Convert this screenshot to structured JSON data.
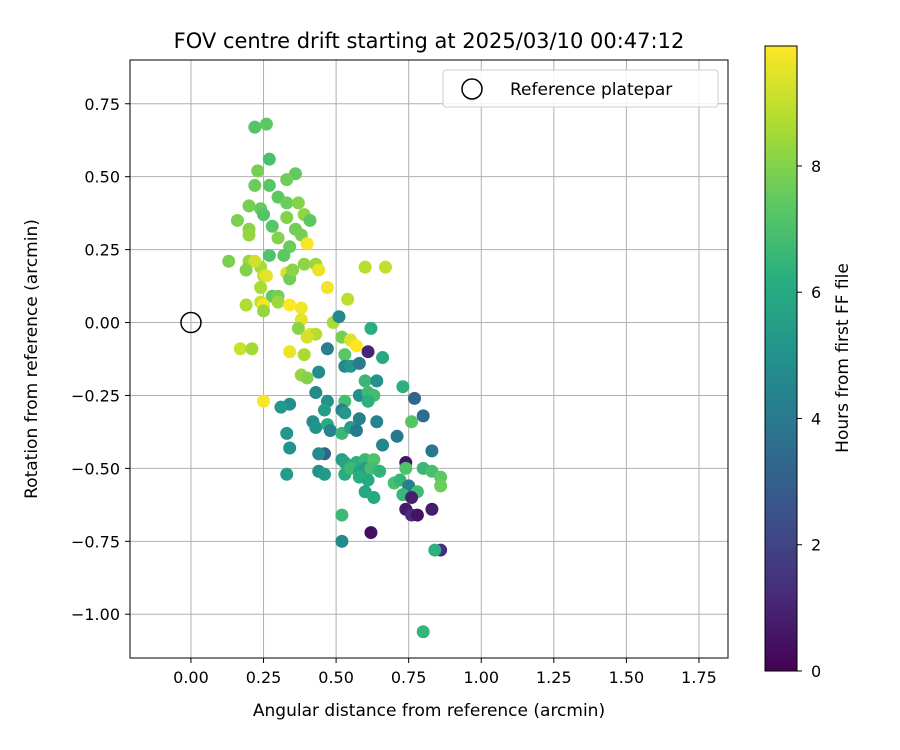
{
  "chart_data": {
    "type": "scatter",
    "title": "FOV centre drift starting at 2025/03/10 00:47:12",
    "xlabel": "Angular distance from reference (arcmin)",
    "ylabel": "Rotation from reference (arcmin)",
    "xlim": [
      -0.21,
      1.85
    ],
    "ylim": [
      -1.15,
      0.9
    ],
    "xticks": [
      "0.00",
      "0.25",
      "0.50",
      "0.75",
      "1.00",
      "1.25",
      "1.50",
      "1.75"
    ],
    "xtick_values": [
      0,
      0.25,
      0.5,
      0.75,
      1.0,
      1.25,
      1.5,
      1.75
    ],
    "yticks": [
      "−1.00",
      "−0.75",
      "−0.50",
      "−0.25",
      "0.00",
      "0.25",
      "0.50",
      "0.75"
    ],
    "ytick_values": [
      -1.0,
      -0.75,
      -0.5,
      -0.25,
      0,
      0.25,
      0.5,
      0.75
    ],
    "grid": true,
    "legend": {
      "placement": "top-right",
      "label": "Reference platepar"
    },
    "reference_point": {
      "x": 0.0,
      "y": 0.0
    },
    "colorbar": {
      "label": "Hours from first FF file",
      "colormap": "viridis",
      "range": [
        0,
        9.9
      ],
      "ticks": [
        "0",
        "2",
        "4",
        "6",
        "8"
      ],
      "tick_values": [
        0,
        2,
        4,
        6,
        8
      ]
    },
    "points": [
      {
        "x": 0.22,
        "y": 0.67,
        "h": 7.2
      },
      {
        "x": 0.26,
        "y": 0.68,
        "h": 7.4
      },
      {
        "x": 0.27,
        "y": 0.56,
        "h": 7.0
      },
      {
        "x": 0.23,
        "y": 0.52,
        "h": 7.8
      },
      {
        "x": 0.22,
        "y": 0.47,
        "h": 7.6
      },
      {
        "x": 0.27,
        "y": 0.47,
        "h": 7.3
      },
      {
        "x": 0.36,
        "y": 0.51,
        "h": 7.5
      },
      {
        "x": 0.33,
        "y": 0.49,
        "h": 7.7
      },
      {
        "x": 0.3,
        "y": 0.43,
        "h": 7.4
      },
      {
        "x": 0.33,
        "y": 0.41,
        "h": 7.6
      },
      {
        "x": 0.37,
        "y": 0.41,
        "h": 8.0
      },
      {
        "x": 0.2,
        "y": 0.4,
        "h": 7.8
      },
      {
        "x": 0.24,
        "y": 0.39,
        "h": 7.5
      },
      {
        "x": 0.25,
        "y": 0.37,
        "h": 7.2
      },
      {
        "x": 0.39,
        "y": 0.37,
        "h": 8.2
      },
      {
        "x": 0.41,
        "y": 0.35,
        "h": 7.4
      },
      {
        "x": 0.16,
        "y": 0.35,
        "h": 7.9
      },
      {
        "x": 0.33,
        "y": 0.36,
        "h": 8.0
      },
      {
        "x": 0.28,
        "y": 0.33,
        "h": 7.3
      },
      {
        "x": 0.36,
        "y": 0.32,
        "h": 7.7
      },
      {
        "x": 0.2,
        "y": 0.32,
        "h": 8.1
      },
      {
        "x": 0.2,
        "y": 0.3,
        "h": 8.3
      },
      {
        "x": 0.3,
        "y": 0.29,
        "h": 8.0
      },
      {
        "x": 0.38,
        "y": 0.3,
        "h": 7.8
      },
      {
        "x": 0.34,
        "y": 0.26,
        "h": 7.6
      },
      {
        "x": 0.4,
        "y": 0.27,
        "h": 9.8
      },
      {
        "x": 0.27,
        "y": 0.23,
        "h": 7.1
      },
      {
        "x": 0.32,
        "y": 0.23,
        "h": 7.4
      },
      {
        "x": 0.13,
        "y": 0.21,
        "h": 7.9
      },
      {
        "x": 0.2,
        "y": 0.21,
        "h": 8.3
      },
      {
        "x": 0.24,
        "y": 0.19,
        "h": 8.5
      },
      {
        "x": 0.22,
        "y": 0.21,
        "h": 9.2
      },
      {
        "x": 0.19,
        "y": 0.18,
        "h": 8.0
      },
      {
        "x": 0.39,
        "y": 0.2,
        "h": 8.2
      },
      {
        "x": 0.43,
        "y": 0.2,
        "h": 8.4
      },
      {
        "x": 0.44,
        "y": 0.18,
        "h": 9.6
      },
      {
        "x": 0.6,
        "y": 0.19,
        "h": 8.8
      },
      {
        "x": 0.67,
        "y": 0.19,
        "h": 9.0
      },
      {
        "x": 0.25,
        "y": 0.16,
        "h": 9.0
      },
      {
        "x": 0.26,
        "y": 0.16,
        "h": 9.5
      },
      {
        "x": 0.33,
        "y": 0.17,
        "h": 9.3
      },
      {
        "x": 0.34,
        "y": 0.15,
        "h": 7.7
      },
      {
        "x": 0.35,
        "y": 0.18,
        "h": 8.1
      },
      {
        "x": 0.24,
        "y": 0.12,
        "h": 8.6
      },
      {
        "x": 0.47,
        "y": 0.12,
        "h": 9.7
      },
      {
        "x": 0.28,
        "y": 0.09,
        "h": 7.5
      },
      {
        "x": 0.3,
        "y": 0.09,
        "h": 7.8
      },
      {
        "x": 0.24,
        "y": 0.07,
        "h": 9.1
      },
      {
        "x": 0.25,
        "y": 0.06,
        "h": 9.8
      },
      {
        "x": 0.19,
        "y": 0.06,
        "h": 8.7
      },
      {
        "x": 0.3,
        "y": 0.07,
        "h": 8.4
      },
      {
        "x": 0.34,
        "y": 0.06,
        "h": 9.9
      },
      {
        "x": 0.54,
        "y": 0.08,
        "h": 8.9
      },
      {
        "x": 0.25,
        "y": 0.04,
        "h": 8.3
      },
      {
        "x": 0.38,
        "y": 0.05,
        "h": 9.7
      },
      {
        "x": 0.38,
        "y": 0.01,
        "h": 9.5
      },
      {
        "x": 0.49,
        "y": 0.0,
        "h": 8.6
      },
      {
        "x": 0.51,
        "y": 0.02,
        "h": 4.6
      },
      {
        "x": 0.37,
        "y": -0.02,
        "h": 8.1
      },
      {
        "x": 0.62,
        "y": -0.02,
        "h": 6.2
      },
      {
        "x": 0.41,
        "y": -0.04,
        "h": 9.6
      },
      {
        "x": 0.43,
        "y": -0.04,
        "h": 8.8
      },
      {
        "x": 0.52,
        "y": -0.05,
        "h": 7.8
      },
      {
        "x": 0.4,
        "y": -0.05,
        "h": 9.3
      },
      {
        "x": 0.55,
        "y": -0.06,
        "h": 9.4
      },
      {
        "x": 0.57,
        "y": -0.08,
        "h": 9.9
      },
      {
        "x": 0.17,
        "y": -0.09,
        "h": 9.1
      },
      {
        "x": 0.21,
        "y": -0.09,
        "h": 8.5
      },
      {
        "x": 0.34,
        "y": -0.1,
        "h": 9.6
      },
      {
        "x": 0.47,
        "y": -0.09,
        "h": 4.3
      },
      {
        "x": 0.61,
        "y": -0.1,
        "h": 1.0
      },
      {
        "x": 0.39,
        "y": -0.11,
        "h": 8.6
      },
      {
        "x": 0.53,
        "y": -0.11,
        "h": 7.3
      },
      {
        "x": 0.66,
        "y": -0.12,
        "h": 6.0
      },
      {
        "x": 0.53,
        "y": -0.15,
        "h": 4.6
      },
      {
        "x": 0.55,
        "y": -0.15,
        "h": 5.2
      },
      {
        "x": 0.58,
        "y": -0.14,
        "h": 4.1
      },
      {
        "x": 0.44,
        "y": -0.17,
        "h": 4.8
      },
      {
        "x": 0.38,
        "y": -0.18,
        "h": 8.3
      },
      {
        "x": 0.4,
        "y": -0.19,
        "h": 8.0
      },
      {
        "x": 0.6,
        "y": -0.2,
        "h": 6.6
      },
      {
        "x": 0.64,
        "y": -0.2,
        "h": 5.0
      },
      {
        "x": 0.73,
        "y": -0.22,
        "h": 6.3
      },
      {
        "x": 0.43,
        "y": -0.24,
        "h": 4.7
      },
      {
        "x": 0.58,
        "y": -0.25,
        "h": 4.9
      },
      {
        "x": 0.61,
        "y": -0.24,
        "h": 6.7
      },
      {
        "x": 0.63,
        "y": -0.25,
        "h": 6.8
      },
      {
        "x": 0.77,
        "y": -0.26,
        "h": 3.3
      },
      {
        "x": 0.25,
        "y": -0.27,
        "h": 9.8
      },
      {
        "x": 0.34,
        "y": -0.28,
        "h": 4.9
      },
      {
        "x": 0.31,
        "y": -0.29,
        "h": 5.3
      },
      {
        "x": 0.47,
        "y": -0.27,
        "h": 5.0
      },
      {
        "x": 0.53,
        "y": -0.27,
        "h": 6.9
      },
      {
        "x": 0.61,
        "y": -0.27,
        "h": 6.3
      },
      {
        "x": 0.46,
        "y": -0.3,
        "h": 5.5
      },
      {
        "x": 0.52,
        "y": -0.3,
        "h": 4.4
      },
      {
        "x": 0.53,
        "y": -0.31,
        "h": 5.2
      },
      {
        "x": 0.58,
        "y": -0.33,
        "h": 4.3
      },
      {
        "x": 0.8,
        "y": -0.32,
        "h": 3.5
      },
      {
        "x": 0.64,
        "y": -0.34,
        "h": 4.4
      },
      {
        "x": 0.76,
        "y": -0.34,
        "h": 7.2
      },
      {
        "x": 0.42,
        "y": -0.34,
        "h": 4.8
      },
      {
        "x": 0.43,
        "y": -0.36,
        "h": 5.1
      },
      {
        "x": 0.47,
        "y": -0.35,
        "h": 6.1
      },
      {
        "x": 0.48,
        "y": -0.37,
        "h": 4.4
      },
      {
        "x": 0.52,
        "y": -0.38,
        "h": 6.6
      },
      {
        "x": 0.55,
        "y": -0.36,
        "h": 5.5
      },
      {
        "x": 0.57,
        "y": -0.37,
        "h": 4.0
      },
      {
        "x": 0.33,
        "y": -0.38,
        "h": 5.2
      },
      {
        "x": 0.71,
        "y": -0.39,
        "h": 4.0
      },
      {
        "x": 0.66,
        "y": -0.42,
        "h": 4.5
      },
      {
        "x": 0.34,
        "y": -0.43,
        "h": 5.0
      },
      {
        "x": 0.83,
        "y": -0.44,
        "h": 3.9
      },
      {
        "x": 0.46,
        "y": -0.45,
        "h": 3.0
      },
      {
        "x": 0.44,
        "y": -0.45,
        "h": 4.8
      },
      {
        "x": 0.52,
        "y": -0.47,
        "h": 5.5
      },
      {
        "x": 0.53,
        "y": -0.48,
        "h": 5.8
      },
      {
        "x": 0.57,
        "y": -0.48,
        "h": 6.3
      },
      {
        "x": 0.6,
        "y": -0.47,
        "h": 6.6
      },
      {
        "x": 0.63,
        "y": -0.47,
        "h": 7.1
      },
      {
        "x": 0.74,
        "y": -0.48,
        "h": 0.6
      },
      {
        "x": 0.33,
        "y": -0.52,
        "h": 5.4
      },
      {
        "x": 0.44,
        "y": -0.51,
        "h": 5.0
      },
      {
        "x": 0.46,
        "y": -0.52,
        "h": 5.3
      },
      {
        "x": 0.53,
        "y": -0.52,
        "h": 6.1
      },
      {
        "x": 0.55,
        "y": -0.5,
        "h": 6.7
      },
      {
        "x": 0.58,
        "y": -0.51,
        "h": 5.8
      },
      {
        "x": 0.6,
        "y": -0.5,
        "h": 5.6
      },
      {
        "x": 0.62,
        "y": -0.5,
        "h": 6.9
      },
      {
        "x": 0.65,
        "y": -0.51,
        "h": 6.4
      },
      {
        "x": 0.74,
        "y": -0.5,
        "h": 7.1
      },
      {
        "x": 0.8,
        "y": -0.5,
        "h": 6.6
      },
      {
        "x": 0.83,
        "y": -0.51,
        "h": 6.9
      },
      {
        "x": 0.58,
        "y": -0.53,
        "h": 6.2
      },
      {
        "x": 0.61,
        "y": -0.54,
        "h": 6.0
      },
      {
        "x": 0.86,
        "y": -0.53,
        "h": 7.4
      },
      {
        "x": 0.7,
        "y": -0.55,
        "h": 7.0
      },
      {
        "x": 0.72,
        "y": -0.54,
        "h": 6.5
      },
      {
        "x": 0.75,
        "y": -0.56,
        "h": 4.2
      },
      {
        "x": 0.86,
        "y": -0.56,
        "h": 7.6
      },
      {
        "x": 0.6,
        "y": -0.58,
        "h": 5.9
      },
      {
        "x": 0.63,
        "y": -0.6,
        "h": 6.0
      },
      {
        "x": 0.73,
        "y": -0.59,
        "h": 6.6
      },
      {
        "x": 0.78,
        "y": -0.58,
        "h": 6.8
      },
      {
        "x": 0.76,
        "y": -0.6,
        "h": 0.9
      },
      {
        "x": 0.74,
        "y": -0.64,
        "h": 0.7
      },
      {
        "x": 0.76,
        "y": -0.66,
        "h": 1.2
      },
      {
        "x": 0.78,
        "y": -0.66,
        "h": 0.5
      },
      {
        "x": 0.83,
        "y": -0.64,
        "h": 0.8
      },
      {
        "x": 0.52,
        "y": -0.66,
        "h": 6.7
      },
      {
        "x": 0.62,
        "y": -0.72,
        "h": 0.4
      },
      {
        "x": 0.52,
        "y": -0.75,
        "h": 4.7
      },
      {
        "x": 0.86,
        "y": -0.78,
        "h": 1.3
      },
      {
        "x": 0.84,
        "y": -0.78,
        "h": 6.3
      },
      {
        "x": 0.8,
        "y": -1.06,
        "h": 6.5
      }
    ]
  }
}
